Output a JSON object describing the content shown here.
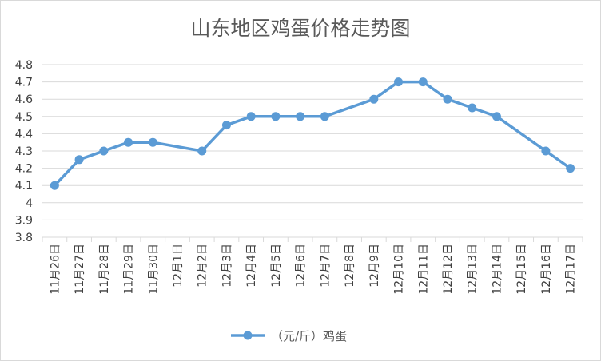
{
  "chart_data": {
    "type": "line",
    "title": "山东地区鸡蛋价格走势图",
    "xlabel": "",
    "ylabel": "",
    "categories": [
      "11月26日",
      "11月27日",
      "11月28日",
      "11月29日",
      "11月30日",
      "12月1日",
      "12月2日",
      "12月3日",
      "12月4日",
      "12月5日",
      "12月6日",
      "12月7日",
      "12月8日",
      "12月9日",
      "12月10日",
      "12月11日",
      "12月12日",
      "12月13日",
      "12月14日",
      "12月15日",
      "12月16日",
      "12月17日"
    ],
    "series": [
      {
        "name": "（元/斤）鸡蛋",
        "color": "#5b9bd5",
        "values": [
          4.1,
          4.25,
          4.3,
          4.35,
          4.35,
          null,
          4.3,
          4.45,
          4.5,
          4.5,
          4.5,
          4.5,
          null,
          4.6,
          4.7,
          4.7,
          4.6,
          4.55,
          4.5,
          null,
          4.3,
          4.2
        ]
      }
    ],
    "ylim": [
      3.8,
      4.8
    ],
    "yticks": [
      "3.8",
      "3.9",
      "4",
      "4.1",
      "4.2",
      "4.3",
      "4.4",
      "4.5",
      "4.6",
      "4.7",
      "4.8"
    ],
    "grid": true,
    "legend_position": "bottom"
  }
}
